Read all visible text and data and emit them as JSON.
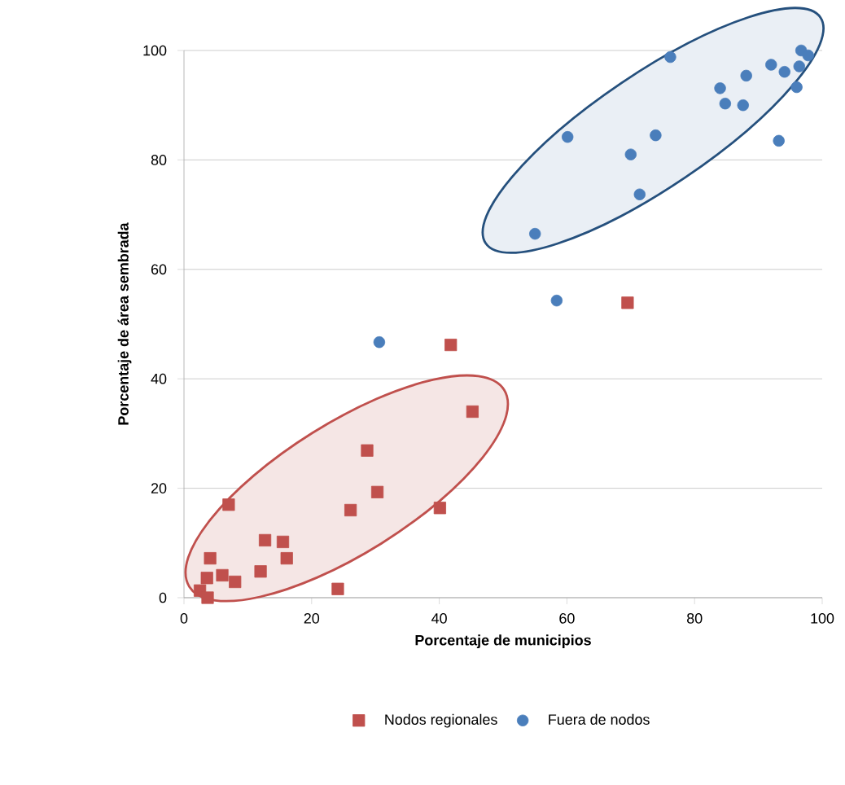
{
  "chart_data": {
    "type": "scatter",
    "xlabel": "Porcentaje de municipios",
    "ylabel": "Porcentaje de área sembrada",
    "xlim": [
      0,
      100
    ],
    "ylim": [
      0,
      100
    ],
    "xticks": [
      0,
      20,
      40,
      60,
      80,
      100
    ],
    "yticks": [
      0,
      20,
      40,
      60,
      80,
      100
    ],
    "grid": "y",
    "legend": "bottom",
    "series": [
      {
        "name": "Nodos regionales",
        "color": "#c0504d",
        "marker": "square",
        "x": [
          41.8,
          45.2,
          28.7,
          30.3,
          26.1,
          40.1,
          7.0,
          12.7,
          15.5,
          16.1,
          12.0,
          4.1,
          6.0,
          8.0,
          3.6,
          2.5,
          3.7,
          24.1,
          69.5
        ],
        "values": [
          46.2,
          34.0,
          26.9,
          19.3,
          16.0,
          16.4,
          17.0,
          10.5,
          10.2,
          7.2,
          4.8,
          7.2,
          4.1,
          2.9,
          3.6,
          1.3,
          0,
          1.6,
          53.9
        ]
      },
      {
        "name": "Fuera de nodos",
        "color": "#4a7ebb",
        "marker": "circle",
        "x": [
          30.6,
          58.4,
          55.0,
          71.4,
          70.0,
          73.9,
          60.1,
          76.2,
          93.2,
          84.0,
          84.8,
          87.6,
          88.1,
          92.0,
          94.1,
          96.0,
          96.4,
          96.7,
          97.8
        ],
        "values": [
          46.7,
          54.3,
          66.5,
          73.7,
          81.0,
          84.5,
          84.2,
          98.8,
          83.5,
          93.1,
          90.3,
          90.0,
          95.4,
          97.4,
          96.1,
          93.3,
          97.1,
          100,
          99.1
        ]
      }
    ]
  }
}
